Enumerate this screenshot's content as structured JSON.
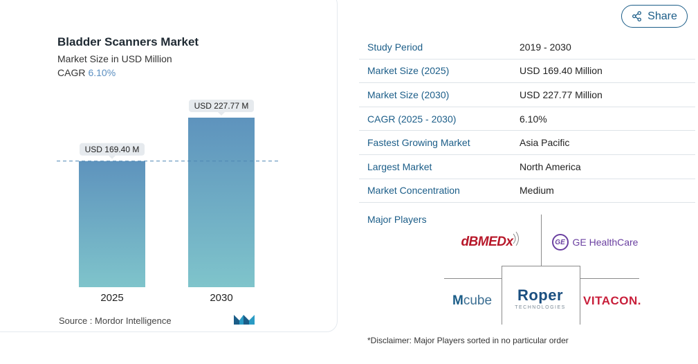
{
  "chart_data": {
    "type": "bar",
    "title": "Bladder Scanners Market",
    "subtitle": "Market Size in USD Million",
    "cagr_label": "CAGR",
    "cagr_value": "6.10%",
    "categories": [
      "2025",
      "2030"
    ],
    "values": [
      169.4,
      227.77
    ],
    "value_labels": [
      "USD 169.40 M",
      "USD 227.77 M"
    ],
    "ylim": [
      0,
      260
    ],
    "grid": false,
    "reference_line": "dashed line at 2025 value",
    "bar_colors": [
      "#5e93bd",
      "#7fc4cb"
    ]
  },
  "source": {
    "label": "Source :",
    "name": "Mordor Intelligence",
    "logo_icon": "mordor-intelligence-logo"
  },
  "share": {
    "label": "Share",
    "icon": "share-icon",
    "color": "#1b5d88"
  },
  "info_table": [
    {
      "key": "Study Period",
      "value": "2019 - 2030"
    },
    {
      "key": "Market Size (2025)",
      "value": "USD 169.40 Million"
    },
    {
      "key": "Market Size (2030)",
      "value": "USD 227.77 Million"
    },
    {
      "key": "CAGR (2025 - 2030)",
      "value": "6.10%"
    },
    {
      "key": "Fastest Growing Market",
      "value": "Asia Pacific"
    },
    {
      "key": "Largest Market",
      "value": "North America"
    },
    {
      "key": "Market Concentration",
      "value": "Medium"
    }
  ],
  "players": {
    "title": "Major Players",
    "logos": [
      {
        "name": "dBMEDx"
      },
      {
        "name": "GE HealthCare",
        "mark": "GE"
      },
      {
        "name": "Mcube",
        "part1": "M",
        "part2": "cube"
      },
      {
        "name": "Roper",
        "tagline": "TECHNOLOGIES"
      },
      {
        "name": "VITACON."
      }
    ],
    "disclaimer": "*Disclaimer: Major Players sorted in no particular order"
  }
}
